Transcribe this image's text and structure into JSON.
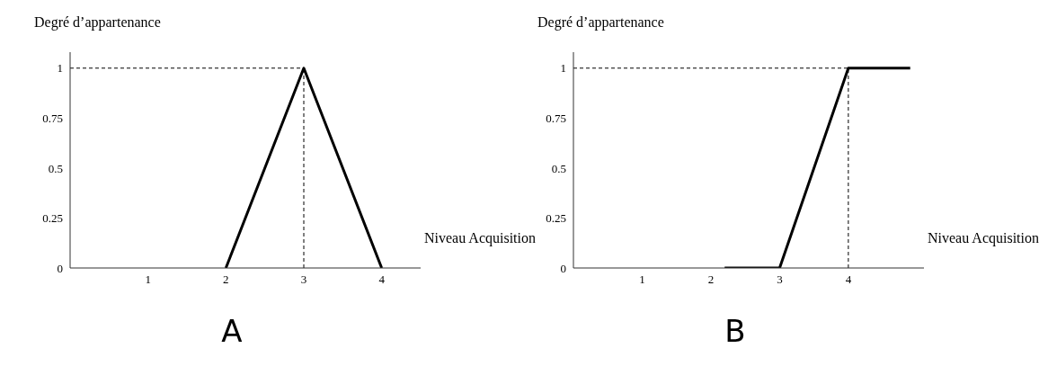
{
  "chart_data": [
    {
      "type": "line",
      "title": "A",
      "ylabel": "Degré d’appartenance",
      "xlabel": "Niveau Acquisition",
      "xlim": [
        0,
        4.5
      ],
      "xticks": [
        1,
        2,
        3,
        4
      ],
      "ylim": [
        0,
        1.08
      ],
      "yticks": [
        0,
        0.25,
        0.5,
        0.75,
        1
      ],
      "grid": false,
      "legend": false,
      "marker": "none",
      "line_style": "solid",
      "series": [
        {
          "color": "#000000",
          "x": [
            2,
            3,
            4
          ],
          "values": [
            0,
            1,
            0
          ]
        }
      ],
      "ref_lines": [
        {
          "axis": "y",
          "value": 1,
          "line_style": "dashed",
          "color": "#000000"
        },
        {
          "axis": "x",
          "value": 3,
          "line_style": "dashed",
          "color": "#000000"
        }
      ]
    },
    {
      "type": "line",
      "title": "B",
      "ylabel": "Degré d’appartenance",
      "xlabel": "Niveau Acquisition",
      "xlim": [
        0,
        5.1
      ],
      "xticks": [
        1,
        2,
        3,
        4
      ],
      "ylim": [
        0,
        1.08
      ],
      "yticks": [
        0,
        0.25,
        0.5,
        0.75,
        1
      ],
      "grid": false,
      "legend": false,
      "marker": "none",
      "line_style": "solid",
      "series": [
        {
          "color": "#000000",
          "x": [
            2.2,
            3,
            4,
            4.9
          ],
          "values": [
            0,
            0,
            1,
            1
          ]
        }
      ],
      "ref_lines": [
        {
          "axis": "y",
          "value": 1,
          "line_style": "dashed",
          "color": "#000000"
        },
        {
          "axis": "x",
          "value": 4,
          "line_style": "dashed",
          "color": "#000000"
        }
      ]
    }
  ]
}
